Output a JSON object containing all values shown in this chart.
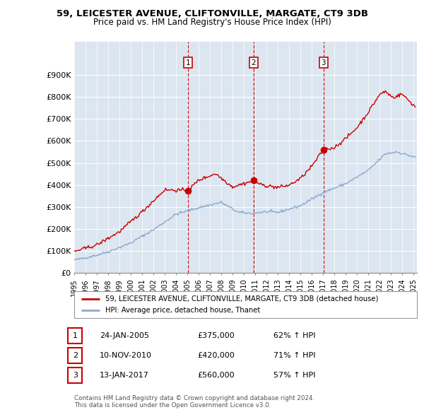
{
  "title": "59, LEICESTER AVENUE, CLIFTONVILLE, MARGATE, CT9 3DB",
  "subtitle": "Price paid vs. HM Land Registry's House Price Index (HPI)",
  "background_color": "#ffffff",
  "plot_bg_color": "#dce6f1",
  "grid_color": "#ffffff",
  "sale_dates": [
    2005.07,
    2010.86,
    2017.04
  ],
  "sale_prices": [
    375000,
    420000,
    560000
  ],
  "sale_labels": [
    "1",
    "2",
    "3"
  ],
  "sale_line_color": "#cc0000",
  "hpi_line_color": "#88aacc",
  "vline_color": "#cc0000",
  "legend_sale_label": "59, LEICESTER AVENUE, CLIFTONVILLE, MARGATE, CT9 3DB (detached house)",
  "legend_hpi_label": "HPI: Average price, detached house, Thanet",
  "table_rows": [
    [
      "1",
      "24-JAN-2005",
      "£375,000",
      "62% ↑ HPI"
    ],
    [
      "2",
      "10-NOV-2010",
      "£420,000",
      "71% ↑ HPI"
    ],
    [
      "3",
      "13-JAN-2017",
      "£560,000",
      "57% ↑ HPI"
    ]
  ],
  "footnote1": "Contains HM Land Registry data © Crown copyright and database right 2024.",
  "footnote2": "This data is licensed under the Open Government Licence v3.0.",
  "xmin": 1995.0,
  "xmax": 2025.3,
  "ymin": 0,
  "ymax": 1000000,
  "yticks": [
    0,
    100000,
    200000,
    300000,
    400000,
    500000,
    600000,
    700000,
    800000,
    900000
  ],
  "ytick_labels": [
    "£0",
    "£100K",
    "£200K",
    "£300K",
    "£400K",
    "£500K",
    "£600K",
    "£700K",
    "£800K",
    "£900K"
  ],
  "xtick_years": [
    1995,
    1996,
    1997,
    1998,
    1999,
    2000,
    2001,
    2002,
    2003,
    2004,
    2005,
    2006,
    2007,
    2008,
    2009,
    2010,
    2011,
    2012,
    2013,
    2014,
    2015,
    2016,
    2017,
    2018,
    2019,
    2020,
    2021,
    2022,
    2023,
    2024,
    2025
  ]
}
